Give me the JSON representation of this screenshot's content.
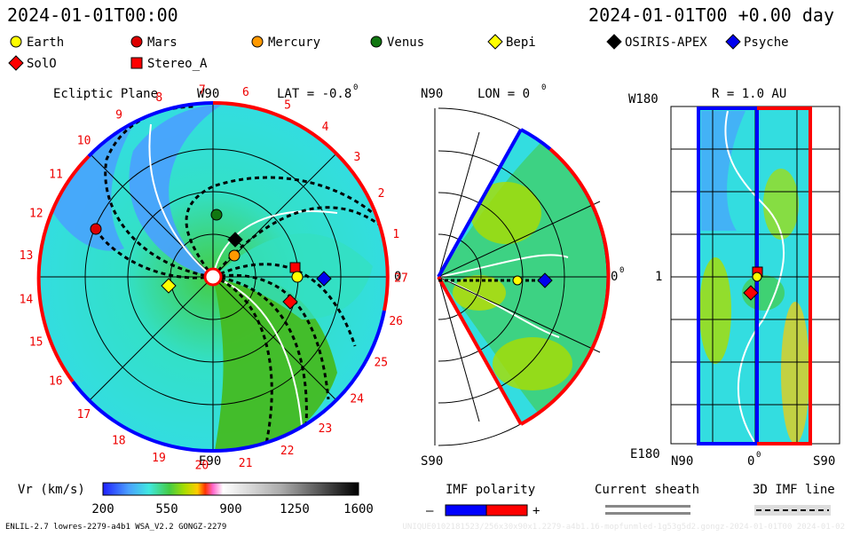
{
  "header": {
    "timestamp": "2024-01-01T00:00",
    "offset": "2024-01-01T00 +0.00 day"
  },
  "legend": [
    {
      "label": "Earth",
      "shape": "circle",
      "color": "#ffff00"
    },
    {
      "label": "Mars",
      "shape": "circle",
      "color": "#dd0000"
    },
    {
      "label": "Mercury",
      "shape": "circle",
      "color": "#ff9900"
    },
    {
      "label": "Venus",
      "shape": "circle",
      "color": "#117711"
    },
    {
      "label": "Bepi",
      "shape": "diamond",
      "color": "#ffff00"
    },
    {
      "label": "OSIRIS-APEX",
      "shape": "diamond",
      "color": "#000000"
    },
    {
      "label": "Psyche",
      "shape": "diamond",
      "color": "#0000ee"
    },
    {
      "label": "SolO",
      "shape": "diamond",
      "color": "#ff0000"
    },
    {
      "label": "Stereo_A",
      "shape": "square",
      "color": "#ff0000"
    }
  ],
  "ecliptic": {
    "title": "Ecliptic Plane",
    "lat": "LAT = -0.8",
    "top_label": "W90",
    "bottom_label": "E90",
    "right_label": "0",
    "carrington_labels": [
      "1",
      "2",
      "3",
      "4",
      "5",
      "6",
      "7",
      "8",
      "9",
      "10",
      "11",
      "12",
      "13",
      "14",
      "15",
      "16",
      "17",
      "18",
      "19",
      "20",
      "21",
      "22",
      "23",
      "24",
      "25",
      "26",
      "27"
    ]
  },
  "meridional": {
    "lon": "LON = 0",
    "top_label": "N90",
    "bottom_label": "S90",
    "right_label": "0"
  },
  "radial": {
    "title": "R = 1.0 AU",
    "top_label": "W180",
    "bottom_label": "E180",
    "mid_label": "1",
    "x_left": "N90",
    "x_mid": "0",
    "x_right": "S90"
  },
  "colorbar": {
    "label": "Vr (km/s)",
    "ticks": [
      "200",
      "550",
      "900",
      "1250",
      "1600"
    ],
    "colors": [
      "#3030ff",
      "#4aa0ff",
      "#40e0e0",
      "#44cc44",
      "#aadd00",
      "#ffcc00",
      "#ff3300",
      "#ff66cc",
      "#dddddd",
      "#999999",
      "#555555",
      "#111111"
    ]
  },
  "imf": {
    "title": "IMF polarity",
    "minus": "–",
    "plus": "+",
    "neg_color": "#0000ff",
    "pos_color": "#ff0000"
  },
  "sheath": {
    "title": "Current sheath"
  },
  "imf3d": {
    "title": "3D IMF line"
  },
  "footer": {
    "left": "ENLIL-2.7 lowres-2279-a4b1 WSA_V2.2 GONGZ-2279",
    "right": "UNIQUE0102181523/256x30x90x1.2279-a4b1.16-mopfunmled-1g53g5d2.gongz-2024-01-01T00   2024-01-02"
  }
}
